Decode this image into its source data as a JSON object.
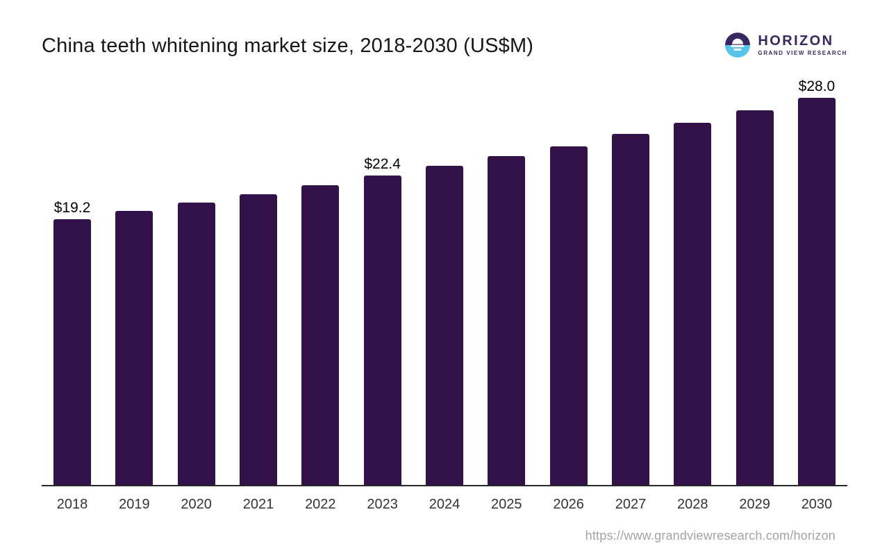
{
  "header": {
    "title": "China teeth whitening market size, 2018-2030 (US$M)",
    "logo": {
      "name": "HORIZON",
      "tagline": "GRAND VIEW RESEARCH",
      "colors": {
        "purple": "#372660",
        "blue": "#55C6E9",
        "white": "#FFFFFF"
      }
    }
  },
  "footer": {
    "source_url": "https://www.grandviewresearch.com/horizon"
  },
  "chart_data": {
    "type": "bar",
    "title": "China teeth whitening market size, 2018-2030 (US$M)",
    "categories": [
      "2018",
      "2019",
      "2020",
      "2021",
      "2022",
      "2023",
      "2024",
      "2025",
      "2026",
      "2027",
      "2028",
      "2029",
      "2030"
    ],
    "values": [
      19.2,
      19.8,
      20.4,
      21.0,
      21.7,
      22.4,
      23.1,
      23.8,
      24.5,
      25.4,
      26.2,
      27.1,
      28.0
    ],
    "data_labels": {
      "2018": "$19.2",
      "2023": "$22.4",
      "2030": "$28.0"
    },
    "unit": "US$M",
    "bar_color": "#33124A",
    "xlabel": "",
    "ylabel": "",
    "ylim": [
      0,
      28.0
    ],
    "grid": false,
    "legend": false
  }
}
